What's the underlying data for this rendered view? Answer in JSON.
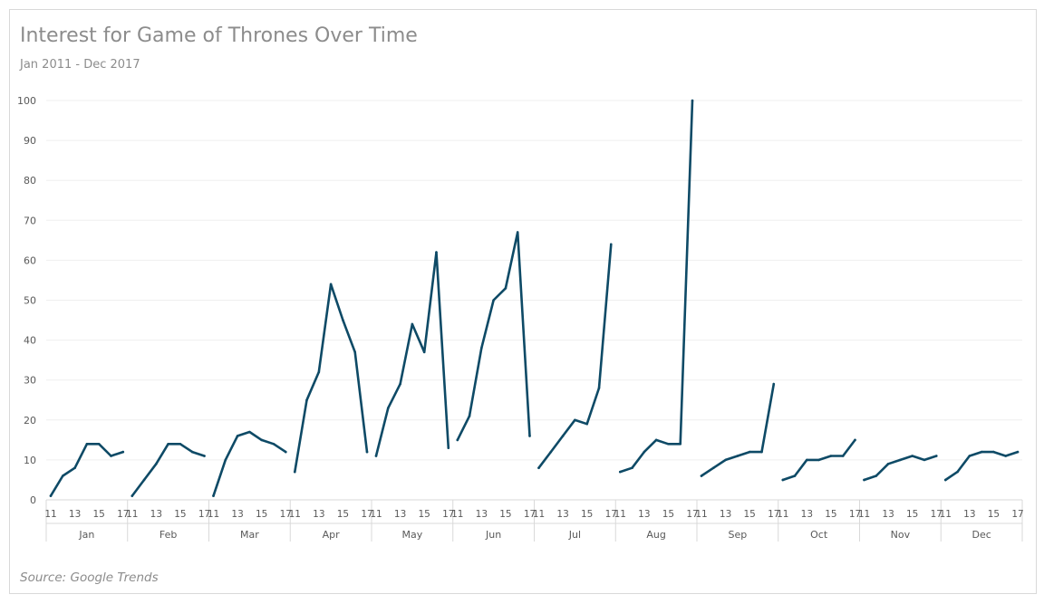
{
  "chart_data": {
    "type": "line",
    "title": "Interest for Game of Thrones Over Time",
    "subtitle": "Jan 2011 - Dec 2017",
    "source": "Source: Google Trends",
    "ylim": [
      0,
      100
    ],
    "yticks": [
      0,
      10,
      20,
      30,
      40,
      50,
      60,
      70,
      80,
      90,
      100
    ],
    "grid": true,
    "line_color": "#0e4a66",
    "year_tick_labels": [
      "11",
      "13",
      "15",
      "17"
    ],
    "groups": [
      {
        "month": "Jan",
        "years": [
          2011,
          2012,
          2013,
          2014,
          2015,
          2016,
          2017
        ],
        "values": [
          1,
          6,
          8,
          14,
          14,
          11,
          12
        ]
      },
      {
        "month": "Feb",
        "years": [
          2011,
          2012,
          2013,
          2014,
          2015,
          2016,
          2017
        ],
        "values": [
          1,
          5,
          9,
          14,
          14,
          12,
          11
        ]
      },
      {
        "month": "Mar",
        "years": [
          2011,
          2012,
          2013,
          2014,
          2015,
          2016,
          2017
        ],
        "values": [
          1,
          10,
          16,
          17,
          15,
          14,
          12
        ]
      },
      {
        "month": "Apr",
        "years": [
          2011,
          2012,
          2013,
          2014,
          2015,
          2016,
          2017
        ],
        "values": [
          7,
          25,
          32,
          54,
          45,
          37,
          12
        ]
      },
      {
        "month": "May",
        "years": [
          2011,
          2012,
          2013,
          2014,
          2015,
          2016,
          2017
        ],
        "values": [
          11,
          23,
          29,
          44,
          37,
          62,
          13
        ]
      },
      {
        "month": "Jun",
        "years": [
          2011,
          2012,
          2013,
          2014,
          2015,
          2016,
          2017
        ],
        "values": [
          15,
          21,
          38,
          50,
          53,
          67,
          16
        ]
      },
      {
        "month": "Jul",
        "years": [
          2011,
          2012,
          2013,
          2014,
          2015,
          2016,
          2017
        ],
        "values": [
          8,
          12,
          16,
          20,
          19,
          28,
          64
        ]
      },
      {
        "month": "Aug",
        "years": [
          2011,
          2012,
          2013,
          2014,
          2015,
          2016,
          2017
        ],
        "values": [
          7,
          8,
          12,
          15,
          14,
          14,
          100
        ]
      },
      {
        "month": "Sep",
        "years": [
          2011,
          2012,
          2013,
          2014,
          2015,
          2016,
          2017
        ],
        "values": [
          6,
          8,
          10,
          11,
          12,
          12,
          29
        ]
      },
      {
        "month": "Oct",
        "years": [
          2011,
          2012,
          2013,
          2014,
          2015,
          2016,
          2017
        ],
        "values": [
          5,
          6,
          10,
          10,
          11,
          11,
          15
        ]
      },
      {
        "month": "Nov",
        "years": [
          2011,
          2012,
          2013,
          2014,
          2015,
          2016,
          2017
        ],
        "values": [
          5,
          6,
          9,
          10,
          11,
          10,
          11
        ]
      },
      {
        "month": "Dec",
        "years": [
          2011,
          2012,
          2013,
          2014,
          2015,
          2016,
          2017
        ],
        "values": [
          5,
          7,
          11,
          12,
          12,
          11,
          12
        ]
      }
    ]
  }
}
